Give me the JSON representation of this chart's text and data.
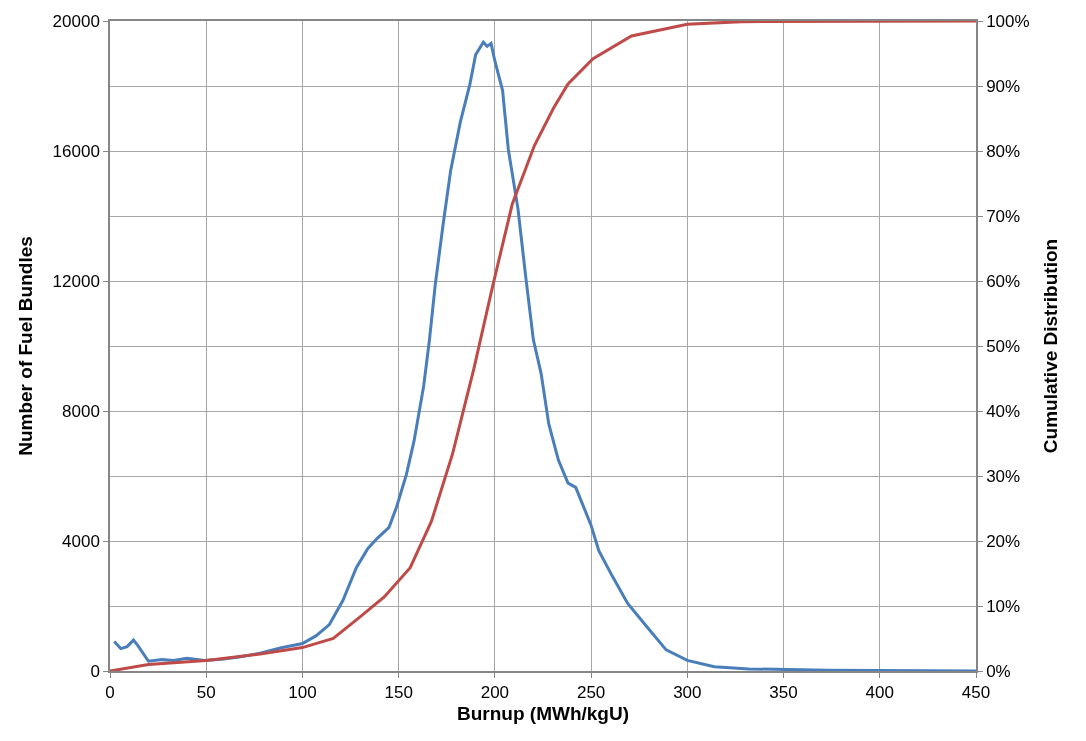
{
  "chart_data": {
    "type": "line",
    "xlabel": "Burnup (MWh/kgU)",
    "ylabel": "Number of Fuel Bundles",
    "y2label": "Cumulative Distribution",
    "xlim": [
      0,
      450
    ],
    "xticks": [
      0,
      50,
      100,
      150,
      200,
      250,
      300,
      350,
      400,
      450
    ],
    "ylim": [
      0,
      20000
    ],
    "yticks": [
      0,
      4000,
      8000,
      12000,
      16000,
      20000
    ],
    "y2lim": [
      0,
      100
    ],
    "y2ticks": [
      {
        "value": 0,
        "label": "0%"
      },
      {
        "value": 10,
        "label": "10%"
      },
      {
        "value": 20,
        "label": "20%"
      },
      {
        "value": 30,
        "label": "30%"
      },
      {
        "value": 40,
        "label": "40%"
      },
      {
        "value": 50,
        "label": "50%"
      },
      {
        "value": 60,
        "label": "60%"
      },
      {
        "value": 70,
        "label": "70%"
      },
      {
        "value": 80,
        "label": "80%"
      },
      {
        "value": 90,
        "label": "90%"
      },
      {
        "value": 100,
        "label": "100%"
      }
    ],
    "grid": true,
    "legend": false,
    "marker": "none",
    "line_style": "solid",
    "series": [
      {
        "color": "#4a7ebb",
        "x": [
          2.2,
          5.6,
          8.9,
          12.2,
          14.5,
          20,
          27,
          33,
          40,
          49,
          58,
          67,
          78,
          89,
          100,
          107,
          114,
          121,
          128,
          134,
          139,
          145,
          149,
          154,
          158,
          163,
          166,
          169,
          173,
          177,
          182,
          187,
          190,
          194,
          196,
          198,
          200,
          204,
          207,
          212,
          216,
          220,
          224,
          228,
          233,
          238,
          242,
          250,
          254,
          261,
          269,
          278,
          289,
          300,
          314,
          332,
          373,
          450
        ],
        "values": [
          910,
          690,
          750,
          950,
          780,
          300,
          350,
          325,
          390,
          325,
          360,
          430,
          545,
          715,
          845,
          1080,
          1430,
          2170,
          3180,
          3770,
          4090,
          4420,
          5060,
          6040,
          7080,
          8770,
          10190,
          11880,
          13700,
          15390,
          16880,
          18050,
          18960,
          19350,
          19220,
          19310,
          18770,
          17860,
          16040,
          14220,
          12140,
          10190,
          9160,
          7600,
          6490,
          5780,
          5650,
          4480,
          3700,
          2920,
          2080,
          1430,
          650,
          325,
          130,
          65,
          25,
          0
        ]
      },
      {
        "color": "#be4b48",
        "axis": "y2",
        "x": [
          0,
          20,
          50,
          78,
          100,
          116,
          129,
          142.5,
          156,
          167,
          178,
          189,
          199,
          209,
          220.5,
          230.5,
          238,
          251,
          271,
          300,
          328,
          450
        ],
        "values": [
          0,
          1,
          1.6,
          2.6,
          3.6,
          5,
          8.1,
          11.4,
          15.9,
          23,
          33.4,
          46.4,
          59.4,
          71.8,
          80.8,
          86.6,
          90.3,
          94.2,
          97.7,
          99.5,
          99.9,
          100
        ]
      }
    ]
  }
}
